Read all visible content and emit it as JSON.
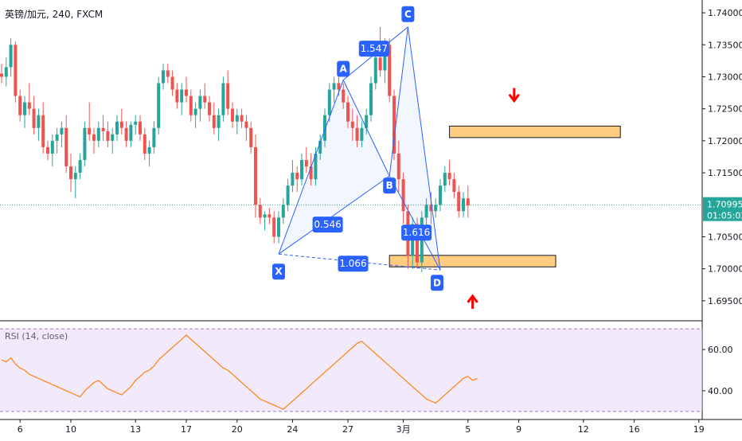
{
  "header": {
    "title": "英镑/加元, 240, FXCM"
  },
  "rsi_panel": {
    "title": "RSI (14, close)"
  },
  "last_price": {
    "value": "1.70995",
    "countdown": "01:05:02",
    "color": "#26a69a"
  },
  "colors": {
    "up": "#26a69a",
    "down": "#ef5350",
    "pattern": "#2962ff",
    "zone_fill": "#ffcc80",
    "zone_border": "#131722",
    "rsi_line": "#ff7f0e",
    "rsi_band": "#e7d9f7",
    "arrow": "#ff0000"
  },
  "chart_data": [
    {
      "type": "candlestick",
      "title": "英镑/加元, 240, FXCM",
      "ylim": [
        1.692,
        1.742
      ],
      "y_ticks": [
        "1.74000",
        "1.73500",
        "1.73000",
        "1.72500",
        "1.72000",
        "1.71500",
        "1.70500",
        "1.70000",
        "1.69500"
      ],
      "x_ticks": [
        "6",
        "10",
        "13",
        "17",
        "20",
        "24",
        "27",
        "3月",
        "5",
        "9",
        "12",
        "16",
        "19"
      ],
      "candles": [
        [
          1.7305,
          1.732,
          1.729,
          1.73
        ],
        [
          1.73,
          1.733,
          1.7285,
          1.7315
        ],
        [
          1.7315,
          1.736,
          1.73,
          1.735
        ],
        [
          1.735,
          1.7355,
          1.726,
          1.727
        ],
        [
          1.727,
          1.728,
          1.723,
          1.724
        ],
        [
          1.724,
          1.727,
          1.722,
          1.726
        ],
        [
          1.726,
          1.729,
          1.724,
          1.725
        ],
        [
          1.725,
          1.727,
          1.721,
          1.722
        ],
        [
          1.722,
          1.725,
          1.72,
          1.724
        ],
        [
          1.724,
          1.726,
          1.718,
          1.719
        ],
        [
          1.719,
          1.72,
          1.717,
          1.718
        ],
        [
          1.718,
          1.721,
          1.716,
          1.72
        ],
        [
          1.72,
          1.722,
          1.718,
          1.721
        ],
        [
          1.721,
          1.723,
          1.719,
          1.722
        ],
        [
          1.722,
          1.724,
          1.715,
          1.716
        ],
        [
          1.716,
          1.718,
          1.712,
          1.714
        ],
        [
          1.714,
          1.716,
          1.711,
          1.715
        ],
        [
          1.715,
          1.718,
          1.714,
          1.717
        ],
        [
          1.717,
          1.723,
          1.716,
          1.722
        ],
        [
          1.722,
          1.726,
          1.72,
          1.721
        ],
        [
          1.721,
          1.722,
          1.718,
          1.72
        ],
        [
          1.72,
          1.723,
          1.719,
          1.722
        ],
        [
          1.722,
          1.724,
          1.72,
          1.7215
        ],
        [
          1.7215,
          1.723,
          1.719,
          1.72
        ],
        [
          1.72,
          1.722,
          1.718,
          1.721
        ],
        [
          1.721,
          1.724,
          1.72,
          1.723
        ],
        [
          1.723,
          1.725,
          1.721,
          1.722
        ],
        [
          1.722,
          1.723,
          1.719,
          1.72
        ],
        [
          1.72,
          1.723,
          1.719,
          1.7225
        ],
        [
          1.7225,
          1.724,
          1.721,
          1.723
        ],
        [
          1.723,
          1.724,
          1.72,
          1.721
        ],
        [
          1.721,
          1.722,
          1.717,
          1.718
        ],
        [
          1.718,
          1.72,
          1.716,
          1.719
        ],
        [
          1.719,
          1.723,
          1.718,
          1.722
        ],
        [
          1.722,
          1.73,
          1.721,
          1.729
        ],
        [
          1.729,
          1.732,
          1.728,
          1.731
        ],
        [
          1.731,
          1.732,
          1.729,
          1.73
        ],
        [
          1.73,
          1.731,
          1.727,
          1.728
        ],
        [
          1.728,
          1.729,
          1.725,
          1.726
        ],
        [
          1.726,
          1.729,
          1.724,
          1.728
        ],
        [
          1.728,
          1.73,
          1.726,
          1.727
        ],
        [
          1.727,
          1.728,
          1.723,
          1.724
        ],
        [
          1.724,
          1.726,
          1.722,
          1.725
        ],
        [
          1.725,
          1.728,
          1.723,
          1.727
        ],
        [
          1.727,
          1.729,
          1.725,
          1.726
        ],
        [
          1.726,
          1.727,
          1.723,
          1.724
        ],
        [
          1.724,
          1.726,
          1.721,
          1.722
        ],
        [
          1.722,
          1.725,
          1.72,
          1.724
        ],
        [
          1.724,
          1.73,
          1.723,
          1.729
        ],
        [
          1.729,
          1.731,
          1.724,
          1.725
        ],
        [
          1.725,
          1.726,
          1.722,
          1.723
        ],
        [
          1.723,
          1.725,
          1.721,
          1.724
        ],
        [
          1.724,
          1.725,
          1.722,
          1.723
        ],
        [
          1.723,
          1.724,
          1.72,
          1.722
        ],
        [
          1.722,
          1.723,
          1.718,
          1.719
        ],
        [
          1.719,
          1.721,
          1.708,
          1.71
        ],
        [
          1.71,
          1.711,
          1.707,
          1.708
        ],
        [
          1.708,
          1.709,
          1.706,
          1.7085
        ],
        [
          1.7085,
          1.7095,
          1.707,
          1.708
        ],
        [
          1.708,
          1.709,
          1.704,
          1.705
        ],
        [
          1.705,
          1.709,
          1.704,
          1.708
        ],
        [
          1.708,
          1.711,
          1.707,
          1.71
        ],
        [
          1.71,
          1.714,
          1.709,
          1.713
        ],
        [
          1.713,
          1.717,
          1.712,
          1.715
        ],
        [
          1.715,
          1.716,
          1.712,
          1.714
        ],
        [
          1.714,
          1.718,
          1.713,
          1.717
        ],
        [
          1.717,
          1.719,
          1.715,
          1.716
        ],
        [
          1.716,
          1.718,
          1.713,
          1.714
        ],
        [
          1.714,
          1.719,
          1.713,
          1.718
        ],
        [
          1.718,
          1.721,
          1.717,
          1.72
        ],
        [
          1.72,
          1.725,
          1.719,
          1.724
        ],
        [
          1.724,
          1.729,
          1.723,
          1.728
        ],
        [
          1.728,
          1.73,
          1.726,
          1.729
        ],
        [
          1.729,
          1.73,
          1.727,
          1.728
        ],
        [
          1.728,
          1.729,
          1.725,
          1.726
        ],
        [
          1.726,
          1.727,
          1.722,
          1.723
        ],
        [
          1.723,
          1.725,
          1.72,
          1.722
        ],
        [
          1.722,
          1.724,
          1.719,
          1.72
        ],
        [
          1.72,
          1.723,
          1.719,
          1.722
        ],
        [
          1.722,
          1.725,
          1.721,
          1.724
        ],
        [
          1.724,
          1.73,
          1.723,
          1.729
        ],
        [
          1.729,
          1.734,
          1.728,
          1.733
        ],
        [
          1.733,
          1.7378,
          1.73,
          1.731
        ],
        [
          1.731,
          1.736,
          1.729,
          1.735
        ],
        [
          1.735,
          1.736,
          1.726,
          1.727
        ],
        [
          1.727,
          1.728,
          1.717,
          1.718
        ],
        [
          1.718,
          1.72,
          1.712,
          1.714
        ],
        [
          1.714,
          1.715,
          1.707,
          1.709
        ],
        [
          1.709,
          1.71,
          1.7,
          1.702
        ],
        [
          1.702,
          1.708,
          1.7,
          1.707
        ],
        [
          1.707,
          1.708,
          1.7,
          1.701
        ],
        [
          1.701,
          1.709,
          1.6995,
          1.708
        ],
        [
          1.708,
          1.711,
          1.706,
          1.71
        ],
        [
          1.71,
          1.712,
          1.707,
          1.709
        ],
        [
          1.709,
          1.711,
          1.708,
          1.71
        ],
        [
          1.71,
          1.714,
          1.709,
          1.713
        ],
        [
          1.713,
          1.716,
          1.712,
          1.715
        ],
        [
          1.715,
          1.717,
          1.713,
          1.714
        ],
        [
          1.714,
          1.715,
          1.711,
          1.712
        ],
        [
          1.712,
          1.713,
          1.708,
          1.709
        ],
        [
          1.709,
          1.712,
          1.708,
          1.711
        ],
        [
          1.711,
          1.713,
          1.708,
          1.7099
        ]
      ],
      "harmonic_pattern": {
        "points": [
          {
            "label": "X",
            "index": 60,
            "price": 1.7023
          },
          {
            "label": "A",
            "index": 74,
            "price": 1.7295
          },
          {
            "label": "B",
            "index": 84,
            "price": 1.7145
          },
          {
            "label": "C",
            "index": 88,
            "price": 1.7378
          },
          {
            "label": "D",
            "index": 95,
            "price": 1.6998
          }
        ],
        "ratios": [
          {
            "label": "1.547",
            "between": "A-C"
          },
          {
            "label": "0.546",
            "between": "X-B"
          },
          {
            "label": "1.616",
            "between": "B-D"
          },
          {
            "label": "1.066",
            "between": "X-D"
          }
        ]
      },
      "zones": [
        {
          "name": "resistance",
          "from_index": 97,
          "to_index": 134,
          "low": 1.7205,
          "high": 1.7223
        },
        {
          "name": "support",
          "from_index": 84,
          "to_index": 120,
          "low": 1.7003,
          "high": 1.7021
        }
      ],
      "arrows": [
        {
          "direction": "down",
          "index": 111,
          "price": 1.7265
        },
        {
          "direction": "up",
          "index": 102,
          "price": 1.6955
        }
      ],
      "last_price": 1.70995
    },
    {
      "type": "line",
      "title": "RSI (14, close)",
      "ylim": [
        28,
        72
      ],
      "y_ticks": [
        "60.00",
        "40.00"
      ],
      "bands": [
        30,
        70
      ],
      "values": [
        55,
        54,
        56,
        53,
        51,
        50,
        48,
        47,
        46,
        45,
        44,
        43,
        42,
        41,
        40,
        39,
        38,
        37,
        40,
        42,
        44,
        45,
        43,
        41,
        40,
        39,
        38,
        40,
        42,
        45,
        47,
        49,
        50,
        52,
        55,
        57,
        59,
        61,
        63,
        65,
        67,
        65,
        63,
        61,
        59,
        57,
        55,
        53,
        51,
        50,
        48,
        46,
        44,
        42,
        40,
        38,
        36,
        35,
        34,
        33,
        32,
        31,
        33,
        35,
        37,
        39,
        41,
        43,
        45,
        47,
        49,
        51,
        53,
        55,
        57,
        59,
        61,
        63,
        64,
        62,
        60,
        58,
        56,
        54,
        52,
        50,
        48,
        46,
        44,
        42,
        40,
        38,
        36,
        35,
        34,
        36,
        38,
        40,
        42,
        44,
        46,
        47,
        45,
        46
      ]
    }
  ]
}
